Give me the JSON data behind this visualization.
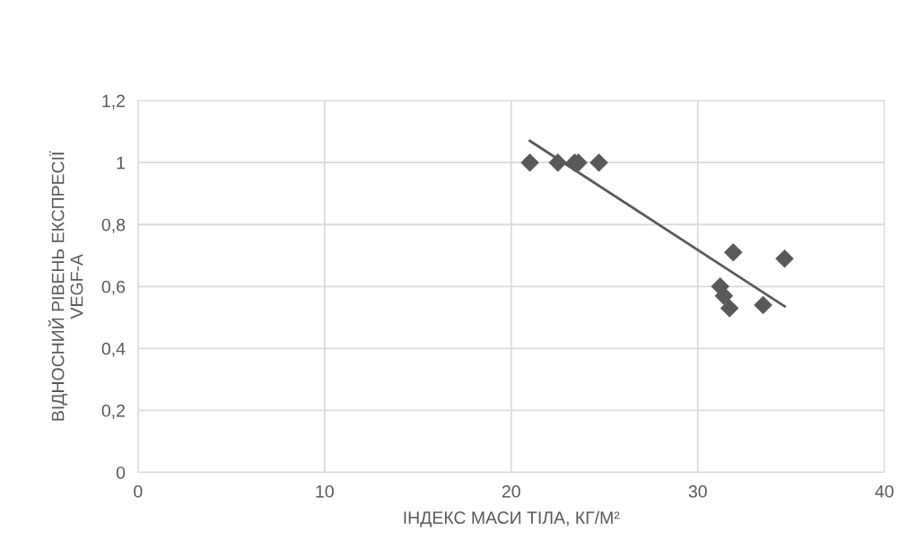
{
  "chart_data": {
    "type": "scatter",
    "xlabel": "ІНДЕКС МАСИ ТІЛА, КГ/М²",
    "ylabel": "ВІДНОСНИЙ РІВЕНЬ ЕКСПРЕСІЇ\nVEGF-A",
    "xlim": [
      0,
      40
    ],
    "xticks": [
      0,
      10,
      20,
      30,
      40
    ],
    "ylim": [
      0,
      1.2
    ],
    "yticks": [
      {
        "value": 0,
        "label": "0"
      },
      {
        "value": 0.2,
        "label": "0,2"
      },
      {
        "value": 0.4,
        "label": "0,4"
      },
      {
        "value": 0.6,
        "label": "0,6"
      },
      {
        "value": 0.8,
        "label": "0,8"
      },
      {
        "value": 1,
        "label": "1"
      },
      {
        "value": 1.2,
        "label": "1,2"
      }
    ],
    "grid": true,
    "series": [
      {
        "marker": "diamond",
        "color": "#595959",
        "x": [
          21.0,
          22.5,
          23.4,
          23.6,
          24.7,
          31.2,
          31.4,
          31.7,
          31.9,
          33.5,
          34.65
        ],
        "values": [
          1,
          1,
          1,
          1,
          1,
          0.6,
          0.57,
          0.53,
          0.71,
          0.54,
          0.69
        ]
      },
      {
        "type": "line",
        "marker": "none",
        "color": "#595959",
        "x": [
          21.0,
          34.65
        ],
        "values": [
          1.07,
          0.536
        ]
      }
    ]
  }
}
